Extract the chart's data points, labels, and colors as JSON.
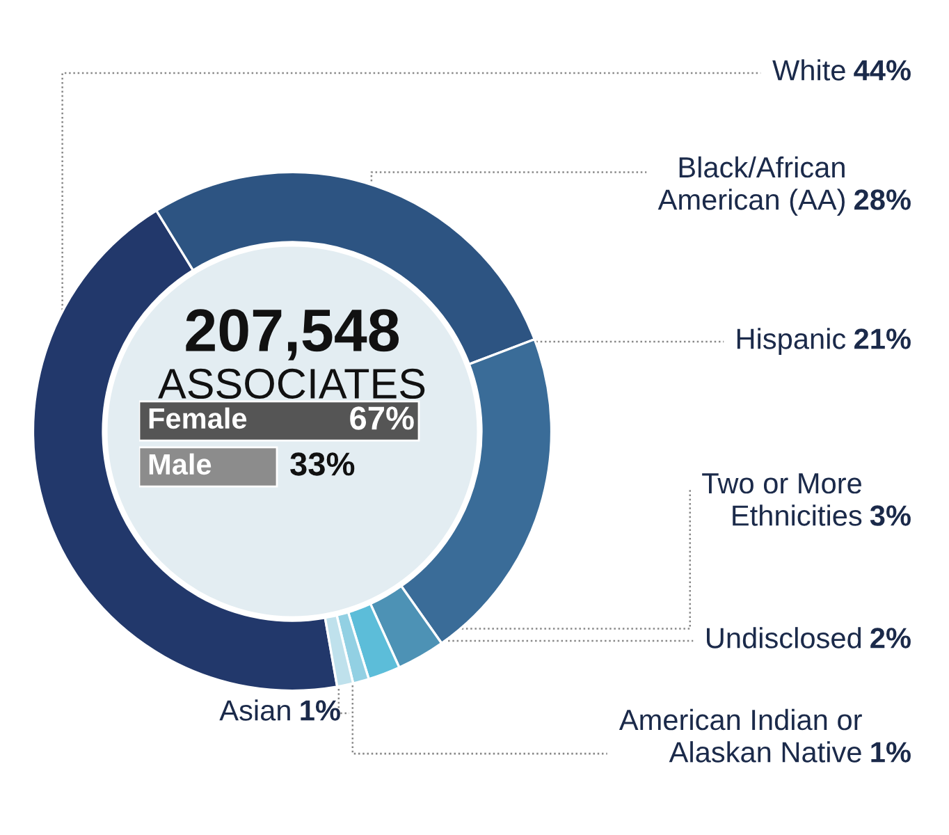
{
  "chart_data": [
    {
      "type": "donut",
      "categories": [
        "White",
        "Black/African\nAmerican (AA)",
        "Hispanic",
        "Two or More\nEthnicities",
        "Undisclosed",
        "American Indian or\nAlaskan Native",
        "Asian"
      ],
      "values": [
        44,
        28,
        21,
        3,
        2,
        1,
        1
      ],
      "value_labels": [
        "44%",
        "28%",
        "21%",
        "3%",
        "2%",
        "1%",
        "1%"
      ],
      "colors": [
        "#22386b",
        "#2d5482",
        "#3a6c98",
        "#4d92b5",
        "#5cbdd9",
        "#92d0e3",
        "#bfe1ec"
      ],
      "annotations": [
        "207,548",
        "ASSOCIATES"
      ],
      "legend": false
    },
    {
      "type": "bar",
      "orientation": "horizontal",
      "categories": [
        "Female",
        "Male"
      ],
      "values": [
        67,
        33
      ],
      "colors": [
        "#555555",
        "#8c8c8c"
      ],
      "value_labels": [
        "67%",
        "33%"
      ]
    }
  ]
}
